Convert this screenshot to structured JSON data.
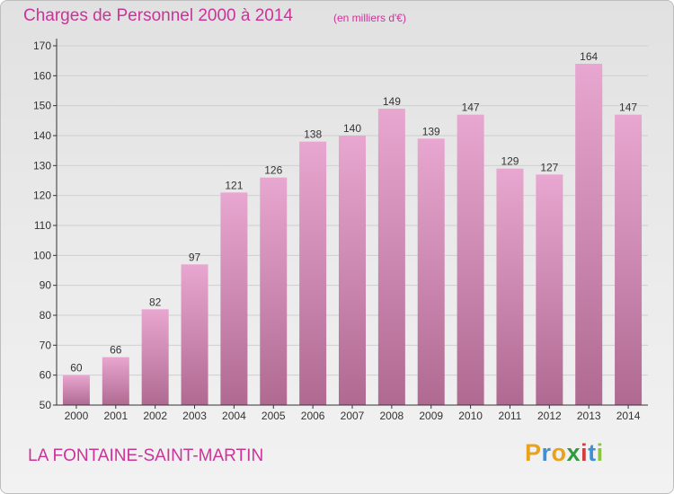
{
  "title": "Charges de Personnel 2000 à 2014",
  "unit_note": "(en milliers d'€)",
  "commune": "LA FONTAINE-SAINT-MARTIN",
  "logo": {
    "letters": [
      "P",
      "r",
      "o",
      "x",
      "i",
      "t",
      "i"
    ],
    "colors": [
      "#e8a21c",
      "#3f8fd6",
      "#e8a21c",
      "#2e9c3e",
      "#d63a3a",
      "#3f8fd6",
      "#8cc63e"
    ]
  },
  "colors": {
    "title": "#cc3399",
    "bar_light": "#e8a7d0",
    "bar_dark": "#b06a92",
    "axis": "#333333"
  },
  "chart_data": {
    "type": "bar",
    "categories": [
      "2000",
      "2001",
      "2002",
      "2003",
      "2004",
      "2005",
      "2006",
      "2007",
      "2008",
      "2009",
      "2010",
      "2011",
      "2012",
      "2013",
      "2014"
    ],
    "values": [
      60,
      66,
      82,
      97,
      121,
      126,
      138,
      140,
      149,
      139,
      147,
      129,
      127,
      164,
      147
    ],
    "ylim": [
      50,
      170
    ],
    "yticks": [
      50,
      60,
      70,
      80,
      90,
      100,
      110,
      120,
      130,
      140,
      150,
      160,
      170
    ],
    "grid": true,
    "data_labels": true
  }
}
